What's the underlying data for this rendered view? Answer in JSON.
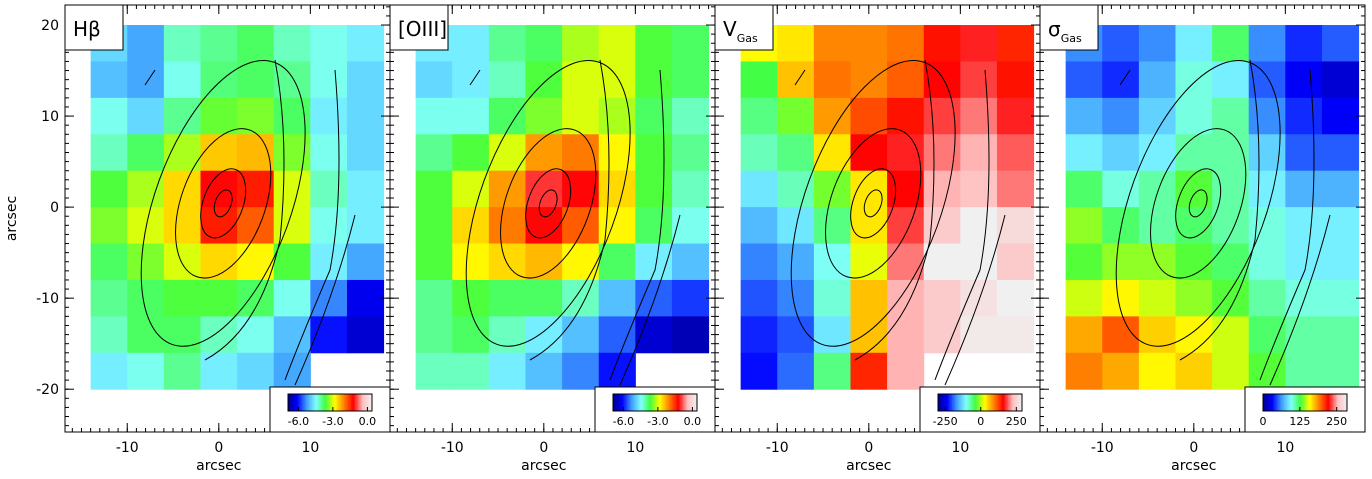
{
  "chart_data": [
    {
      "type": "heatmap",
      "title": "Hβ",
      "xlabel": "arcsec",
      "ylabel": "arcsec",
      "xlim": [
        -16.8,
        18.7
      ],
      "ylim": [
        -24.7,
        22.2
      ],
      "xticks": [
        -10,
        0,
        10
      ],
      "yticks": [
        -20,
        -10,
        0,
        10,
        20
      ],
      "x": [
        -12,
        -8,
        -4,
        0,
        4,
        8,
        12,
        16
      ],
      "y": [
        18,
        14,
        10,
        6,
        2,
        -2,
        -6,
        -10,
        -14,
        -18
      ],
      "values": [
        [
          -4.8,
          -5.2,
          -4.2,
          -4.0,
          -3.8,
          -4.2,
          -4.4,
          -4.6
        ],
        [
          -5.0,
          -5.2,
          -4.4,
          -3.9,
          -3.8,
          -4.0,
          -4.4,
          -4.8
        ],
        [
          -4.4,
          -4.8,
          -4.0,
          -3.5,
          -3.4,
          -3.8,
          -4.6,
          -4.8
        ],
        [
          -4.2,
          -3.8,
          -3.2,
          -2.5,
          -2.4,
          -3.4,
          -4.4,
          -4.8
        ],
        [
          -3.6,
          -3.2,
          -2.6,
          -1.2,
          -1.4,
          -3.0,
          -4.2,
          -4.6
        ],
        [
          -3.4,
          -3.0,
          -2.6,
          -1.4,
          -1.8,
          -3.0,
          -4.4,
          -4.6
        ],
        [
          -3.8,
          -3.4,
          -3.0,
          -2.6,
          -2.8,
          -3.6,
          -4.6,
          -5.2
        ],
        [
          -4.0,
          -3.8,
          -3.6,
          -3.6,
          -3.8,
          -4.4,
          -5.4,
          -6.2
        ],
        [
          -4.2,
          -3.8,
          -3.8,
          -4.2,
          -4.4,
          -5.0,
          -6.0,
          -6.4
        ],
        [
          -4.6,
          -4.4,
          -4.0,
          -4.6,
          -4.8,
          -5.2,
          null,
          null
        ]
      ],
      "clim": [
        -6.9,
        0.4
      ],
      "colorbar_ticks": [
        {
          "value": -6,
          "label": "-6.0"
        },
        {
          "value": -3,
          "label": "-3.0"
        },
        {
          "value": 0,
          "label": "0.0"
        }
      ],
      "colormap": [
        "#00008b",
        "#0000ff",
        "#3f9fff",
        "#80ffff",
        "#40ff40",
        "#ffff00",
        "#ff8000",
        "#ff0000",
        "#ffc0c0",
        "#f0f0f0"
      ]
    },
    {
      "type": "heatmap",
      "title": "[OIII]",
      "xlabel": "arcsec",
      "xlim": [
        -16.8,
        18.7
      ],
      "ylim": [
        -24.7,
        22.2
      ],
      "xticks": [
        -10,
        0,
        10
      ],
      "x": [
        -12,
        -8,
        -4,
        0,
        4,
        8,
        12,
        16
      ],
      "y": [
        18,
        14,
        10,
        6,
        2,
        -2,
        -6,
        -10,
        -14,
        -18
      ],
      "values": [
        [
          -4.6,
          -4.6,
          -4.0,
          -3.8,
          -3.2,
          -3.0,
          -3.6,
          -3.8
        ],
        [
          -4.8,
          -4.6,
          -4.2,
          -3.6,
          -3.0,
          -3.0,
          -3.6,
          -3.8
        ],
        [
          -4.4,
          -4.4,
          -3.8,
          -3.4,
          -3.0,
          -3.2,
          -3.8,
          -4.2
        ],
        [
          -4.0,
          -3.6,
          -3.0,
          -2.2,
          -2.0,
          -2.8,
          -3.6,
          -4.0
        ],
        [
          -3.6,
          -3.0,
          -2.2,
          -1.0,
          -1.2,
          -2.6,
          -3.6,
          -4.2
        ],
        [
          -3.6,
          -2.6,
          -2.0,
          -1.2,
          -1.8,
          -2.8,
          -3.8,
          -4.4
        ],
        [
          -3.6,
          -2.8,
          -2.6,
          -2.4,
          -2.8,
          -3.8,
          -4.6,
          -5.0
        ],
        [
          -4.0,
          -3.6,
          -3.8,
          -3.8,
          -4.2,
          -5.0,
          -5.6,
          -5.8
        ],
        [
          -4.0,
          -3.8,
          -4.2,
          -4.6,
          -5.0,
          -5.6,
          -6.4,
          -6.6
        ],
        [
          -4.2,
          -4.2,
          -4.6,
          -5.0,
          -5.4,
          -6.0,
          null,
          null
        ]
      ],
      "clim": [
        -6.9,
        0.4
      ],
      "colorbar_ticks": [
        {
          "value": -6,
          "label": "-6.0"
        },
        {
          "value": -3,
          "label": "-3.0"
        },
        {
          "value": 0,
          "label": "0.0"
        }
      ],
      "colormap": [
        "#00008b",
        "#0000ff",
        "#3f9fff",
        "#80ffff",
        "#40ff40",
        "#ffff00",
        "#ff8000",
        "#ff0000",
        "#ffc0c0",
        "#f0f0f0"
      ]
    },
    {
      "type": "heatmap",
      "title": "V",
      "title_sub": "Gas",
      "xlabel": "arcsec",
      "xlim": [
        -16.8,
        18.7
      ],
      "ylim": [
        -24.7,
        22.2
      ],
      "xticks": [
        -10,
        0,
        10
      ],
      "x": [
        -12,
        -8,
        -4,
        0,
        4,
        8,
        12,
        16
      ],
      "y": [
        18,
        14,
        10,
        6,
        2,
        -2,
        -6,
        -10,
        -14,
        -18
      ],
      "values": [
        [
          30,
          40,
          90,
          90,
          100,
          150,
          170,
          140
        ],
        [
          -40,
          60,
          100,
          90,
          110,
          160,
          180,
          150
        ],
        [
          -60,
          -20,
          80,
          120,
          150,
          180,
          200,
          170
        ],
        [
          -80,
          -60,
          40,
          160,
          170,
          200,
          220,
          190
        ],
        [
          -120,
          -80,
          -20,
          40,
          160,
          220,
          230,
          200
        ],
        [
          -150,
          -120,
          -60,
          40,
          180,
          240,
          300,
          260
        ],
        [
          -180,
          -160,
          -100,
          20,
          200,
          300,
          290,
          240
        ],
        [
          -200,
          -180,
          -90,
          60,
          220,
          240,
          270,
          290
        ],
        [
          -220,
          -200,
          -120,
          60,
          220,
          240,
          280,
          280
        ],
        [
          -230,
          -190,
          -60,
          140,
          220,
          null,
          null,
          null
        ]
      ],
      "clim": [
        -300,
        290
      ],
      "colorbar_ticks": [
        -250,
        0,
        250
      ],
      "colormap": [
        "#00008b",
        "#0000ff",
        "#3f9fff",
        "#80ffff",
        "#40ff40",
        "#ffff00",
        "#ff8000",
        "#ff0000",
        "#ffc0c0",
        "#f0f0f0"
      ]
    },
    {
      "type": "heatmap",
      "title": "σ",
      "title_sub": "Gas",
      "xlabel": "arcsec",
      "xlim": [
        -16.8,
        18.7
      ],
      "ylim": [
        -24.7,
        22.2
      ],
      "xticks": [
        -10,
        0,
        10
      ],
      "x": [
        -12,
        -8,
        -4,
        0,
        4,
        8,
        12,
        16
      ],
      "y": [
        18,
        14,
        10,
        6,
        2,
        -2,
        -6,
        -10,
        -14,
        -18
      ],
      "values": [
        [
          60,
          50,
          60,
          90,
          120,
          60,
          40,
          50
        ],
        [
          50,
          40,
          70,
          100,
          90,
          50,
          30,
          20
        ],
        [
          70,
          60,
          80,
          100,
          110,
          60,
          40,
          30
        ],
        [
          90,
          80,
          90,
          110,
          110,
          80,
          50,
          50
        ],
        [
          120,
          100,
          110,
          130,
          110,
          90,
          70,
          70
        ],
        [
          140,
          120,
          110,
          120,
          110,
          100,
          90,
          90
        ],
        [
          130,
          140,
          140,
          130,
          120,
          100,
          90,
          90
        ],
        [
          150,
          160,
          150,
          140,
          130,
          110,
          100,
          100
        ],
        [
          180,
          200,
          170,
          160,
          150,
          120,
          110,
          110
        ],
        [
          190,
          180,
          160,
          170,
          150,
          130,
          110,
          110
        ]
      ],
      "clim": [
        0,
        285
      ],
      "colorbar_ticks": [
        0,
        125,
        250
      ],
      "colormap": [
        "#00008b",
        "#0000ff",
        "#3f9fff",
        "#80ffff",
        "#40ff40",
        "#ffff00",
        "#ff8000",
        "#ff0000",
        "#ffc0c0",
        "#f0f0f0"
      ]
    }
  ]
}
